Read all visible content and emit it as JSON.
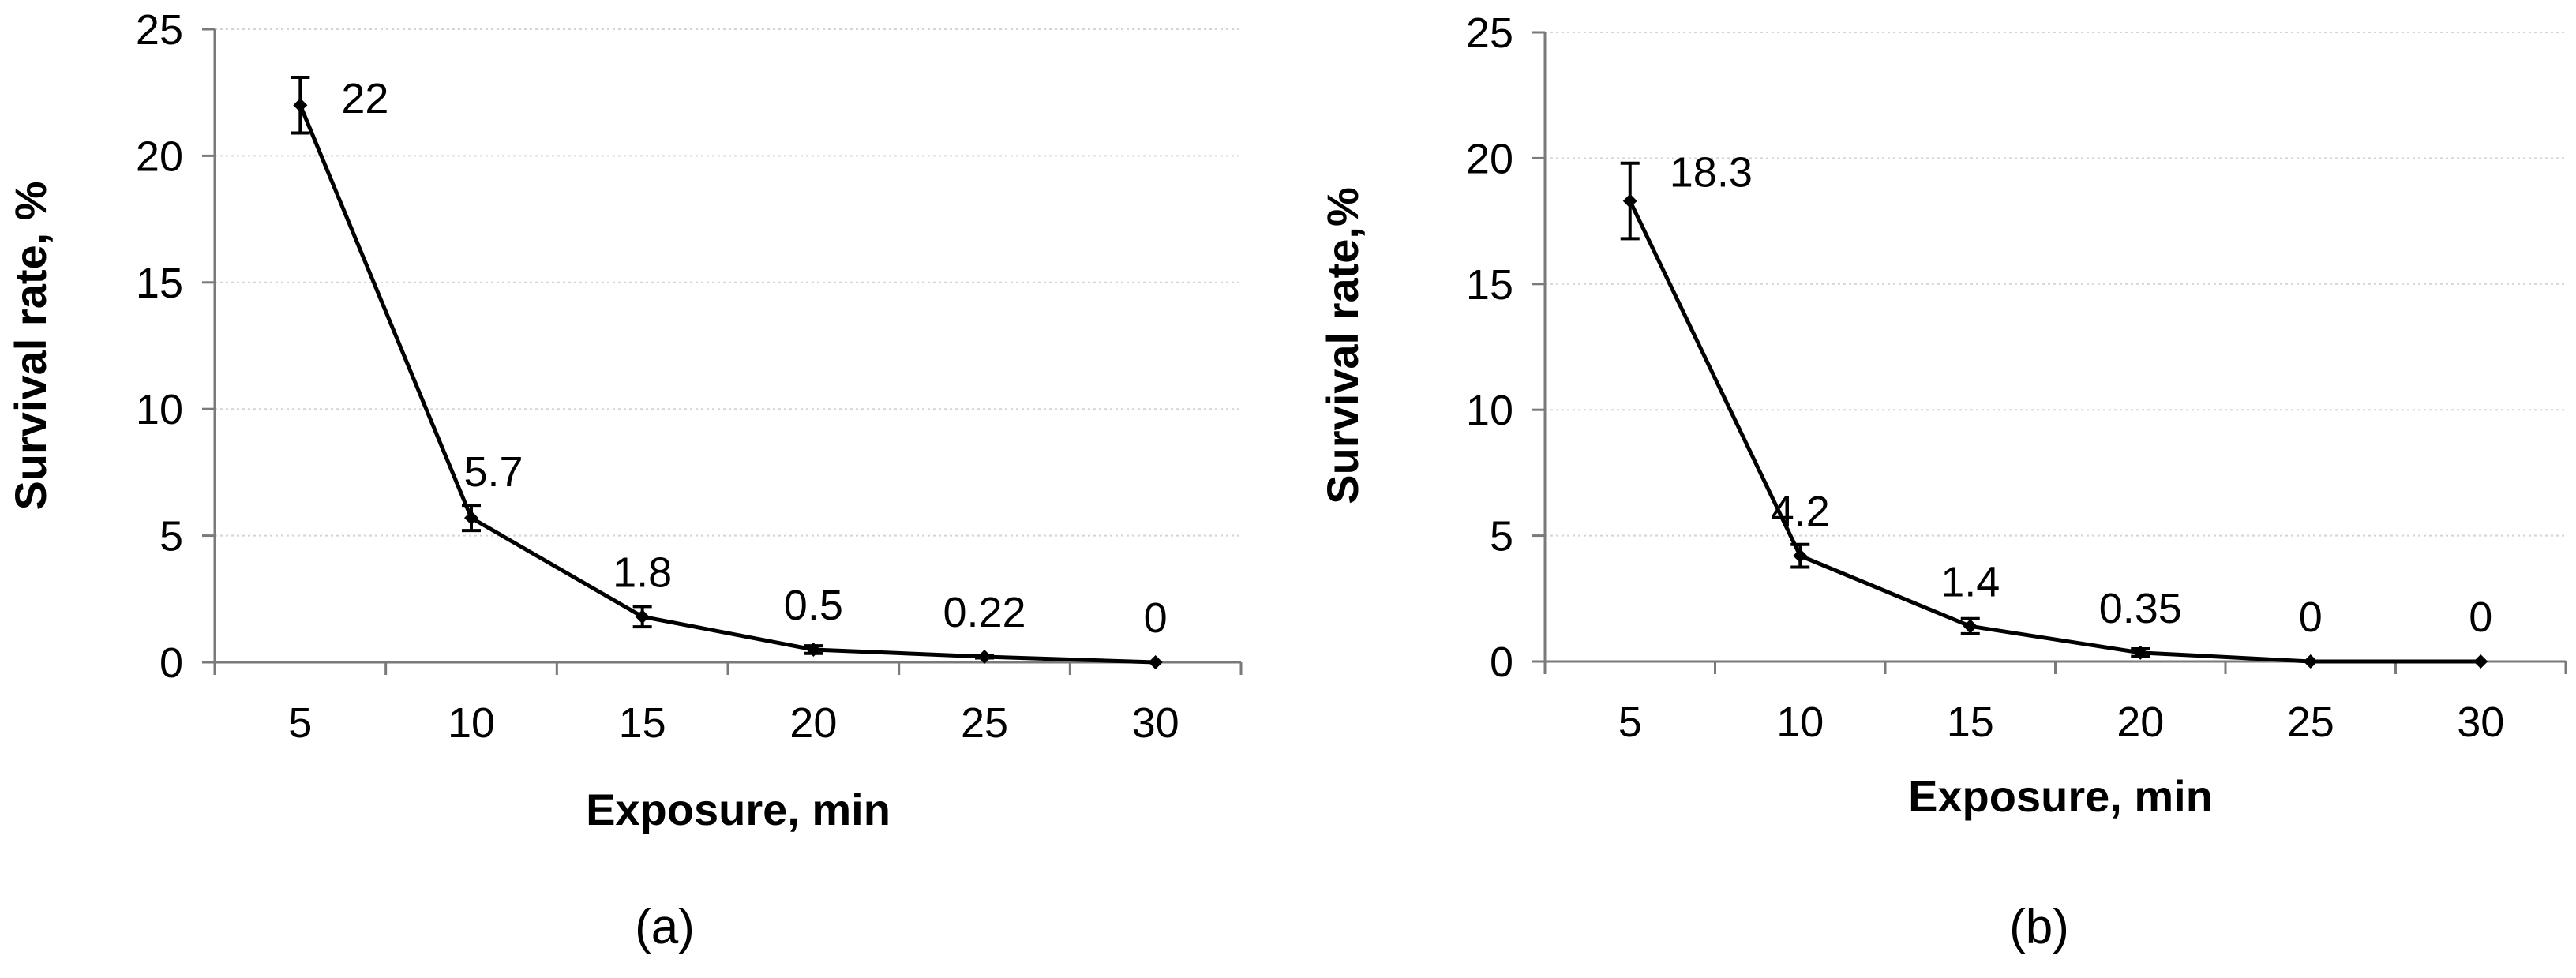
{
  "chart_data": [
    {
      "type": "line",
      "panel_label": "(a)",
      "xlabel": "Exposure, min",
      "ylabel": "Survival rate, %",
      "categories": [
        "5",
        "10",
        "15",
        "20",
        "25",
        "30"
      ],
      "x": [
        5,
        10,
        15,
        20,
        25,
        30
      ],
      "series": [
        {
          "values": [
            22,
            5.7,
            1.8,
            0.5,
            0.22,
            0
          ],
          "error": [
            1.1,
            0.5,
            0.4,
            0.15,
            0.05,
            0
          ],
          "labels": [
            "22",
            "5.7",
            "1.8",
            "0.5",
            "0.22",
            "0"
          ]
        }
      ],
      "ylim": [
        0,
        25
      ],
      "yticks": [
        0,
        5,
        10,
        15,
        20,
        25
      ],
      "grid": true,
      "legend": "none"
    },
    {
      "type": "line",
      "panel_label": "(b)",
      "xlabel": "Exposure, min",
      "ylabel": "Survival rate,%",
      "categories": [
        "5",
        "10",
        "15",
        "20",
        "25",
        "30"
      ],
      "x": [
        5,
        10,
        15,
        20,
        25,
        30
      ],
      "series": [
        {
          "values": [
            18.3,
            4.2,
            1.4,
            0.35,
            0,
            0
          ],
          "error": [
            1.5,
            0.45,
            0.3,
            0.15,
            0,
            0
          ],
          "labels": [
            "18.3",
            "4.2",
            "1.4",
            "0.35",
            "0",
            "0"
          ]
        }
      ],
      "ylim": [
        0,
        25
      ],
      "yticks": [
        0,
        5,
        10,
        15,
        20,
        25
      ],
      "grid": true,
      "legend": "none"
    }
  ]
}
